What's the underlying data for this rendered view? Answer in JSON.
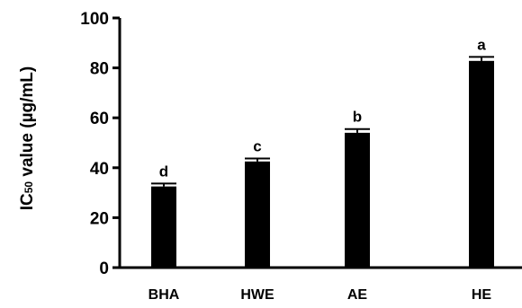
{
  "chart_data": {
    "type": "bar",
    "categories": [
      "BHA",
      "HWE",
      "AE",
      "HE"
    ],
    "values": [
      32.5,
      42.5,
      54.0,
      82.8
    ],
    "errors": [
      1.2,
      1.2,
      1.5,
      1.6
    ],
    "significance": [
      "d",
      "c",
      "b",
      "a"
    ],
    "title": "",
    "xlabel": "",
    "ylabel": {
      "prefix": "IC",
      "subscript": "50",
      "suffix": " value (µg/mL)"
    },
    "ylim": [
      0,
      100
    ],
    "yticks": [
      "0",
      "20",
      "40",
      "60",
      "80",
      "100"
    ],
    "grid": false,
    "bar_color": "#000000"
  }
}
